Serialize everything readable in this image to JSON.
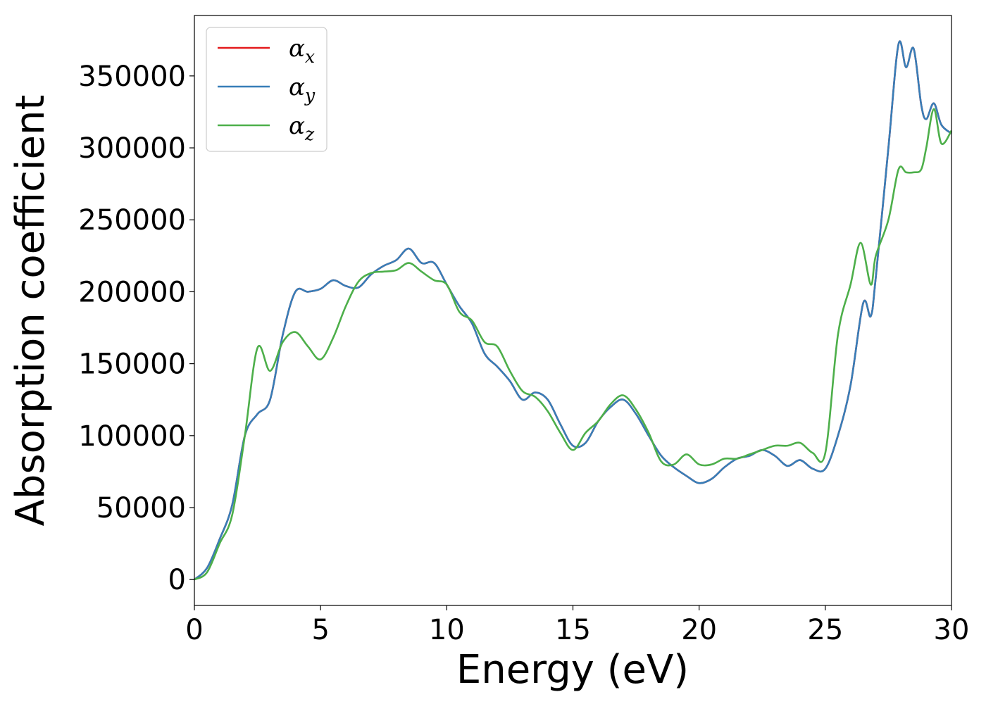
{
  "chart_data": {
    "type": "line",
    "title": "",
    "xlabel": "Energy (eV)",
    "ylabel": "Absorption coefficient",
    "xlim": [
      0,
      30
    ],
    "ylim": [
      -18000,
      392000
    ],
    "xticks": [
      0,
      5,
      10,
      15,
      20,
      25,
      30
    ],
    "yticks": [
      0,
      50000,
      100000,
      150000,
      200000,
      250000,
      300000,
      350000
    ],
    "grid": false,
    "legend_position": "top-left",
    "series": [
      {
        "name": "αx",
        "base": "α",
        "sub": "x",
        "color": "#e41a1c",
        "x": [
          0,
          0.5,
          1.0,
          1.5,
          2.0,
          2.5,
          3.0,
          3.5,
          4.0,
          4.5,
          5.0,
          5.5,
          6.0,
          6.5,
          7.0,
          7.5,
          8.0,
          8.5,
          9.0,
          9.5,
          10.0,
          10.5,
          11.0,
          11.5,
          12.0,
          12.5,
          13.0,
          13.5,
          14.0,
          14.5,
          15.0,
          15.5,
          16.0,
          16.5,
          17.0,
          17.5,
          18.0,
          18.5,
          19.0,
          19.5,
          20.0,
          20.5,
          21.0,
          21.5,
          22.0,
          22.5,
          23.0,
          23.5,
          24.0,
          24.5,
          25.0,
          25.5,
          26.0,
          26.5,
          26.8,
          27.0,
          27.5,
          27.9,
          28.2,
          28.5,
          28.8,
          29.0,
          29.3,
          29.6,
          30.0
        ],
        "y": [
          0,
          8000,
          28000,
          52000,
          100000,
          115000,
          125000,
          170000,
          200000,
          200000,
          202000,
          208000,
          204000,
          203000,
          212000,
          218000,
          222000,
          230000,
          220000,
          220000,
          205000,
          190000,
          178000,
          157000,
          148000,
          138000,
          125000,
          130000,
          125000,
          108000,
          93000,
          95000,
          110000,
          120000,
          125000,
          115000,
          100000,
          86000,
          78000,
          72000,
          67000,
          70000,
          78000,
          84000,
          86000,
          90000,
          86000,
          79000,
          83000,
          77000,
          77000,
          100000,
          135000,
          192000,
          183000,
          210000,
          300000,
          372000,
          356000,
          369000,
          330000,
          320000,
          331000,
          316000,
          310000
        ]
      },
      {
        "name": "αy",
        "base": "α",
        "sub": "y",
        "color": "#377eb8",
        "x": [
          0,
          0.5,
          1.0,
          1.5,
          2.0,
          2.5,
          3.0,
          3.5,
          4.0,
          4.5,
          5.0,
          5.5,
          6.0,
          6.5,
          7.0,
          7.5,
          8.0,
          8.5,
          9.0,
          9.5,
          10.0,
          10.5,
          11.0,
          11.5,
          12.0,
          12.5,
          13.0,
          13.5,
          14.0,
          14.5,
          15.0,
          15.5,
          16.0,
          16.5,
          17.0,
          17.5,
          18.0,
          18.5,
          19.0,
          19.5,
          20.0,
          20.5,
          21.0,
          21.5,
          22.0,
          22.5,
          23.0,
          23.5,
          24.0,
          24.5,
          25.0,
          25.5,
          26.0,
          26.5,
          26.8,
          27.0,
          27.5,
          27.9,
          28.2,
          28.5,
          28.8,
          29.0,
          29.3,
          29.6,
          30.0
        ],
        "y": [
          0,
          8000,
          28000,
          52000,
          100000,
          115000,
          125000,
          170000,
          200000,
          200000,
          202000,
          208000,
          204000,
          203000,
          212000,
          218000,
          222000,
          230000,
          220000,
          220000,
          205000,
          190000,
          178000,
          157000,
          148000,
          138000,
          125000,
          130000,
          125000,
          108000,
          93000,
          95000,
          110000,
          120000,
          125000,
          115000,
          100000,
          86000,
          78000,
          72000,
          67000,
          70000,
          78000,
          84000,
          86000,
          90000,
          86000,
          79000,
          83000,
          77000,
          77000,
          100000,
          135000,
          192000,
          183000,
          210000,
          300000,
          372000,
          356000,
          369000,
          330000,
          320000,
          331000,
          316000,
          310000
        ]
      },
      {
        "name": "αz",
        "base": "α",
        "sub": "z",
        "color": "#4daf4a",
        "x": [
          0,
          0.5,
          1.0,
          1.5,
          2.0,
          2.5,
          3.0,
          3.5,
          4.0,
          4.5,
          5.0,
          5.5,
          6.0,
          6.5,
          7.0,
          7.5,
          8.0,
          8.5,
          9.0,
          9.5,
          10.0,
          10.5,
          11.0,
          11.5,
          12.0,
          12.5,
          13.0,
          13.5,
          14.0,
          14.5,
          15.0,
          15.5,
          16.0,
          16.5,
          17.0,
          17.5,
          18.0,
          18.5,
          19.0,
          19.5,
          20.0,
          20.5,
          21.0,
          21.5,
          22.0,
          22.5,
          23.0,
          23.5,
          24.0,
          24.5,
          25.0,
          25.5,
          26.0,
          26.4,
          26.8,
          27.0,
          27.5,
          27.9,
          28.2,
          28.5,
          28.8,
          29.0,
          29.3,
          29.6,
          30.0
        ],
        "y": [
          0,
          5000,
          25000,
          45000,
          100000,
          161000,
          145000,
          165000,
          172000,
          162000,
          153000,
          168000,
          190000,
          207000,
          213000,
          214000,
          215000,
          220000,
          214000,
          208000,
          205000,
          186000,
          180000,
          165000,
          162000,
          145000,
          131000,
          127000,
          117000,
          102000,
          90000,
          102000,
          110000,
          122000,
          128000,
          118000,
          102000,
          82000,
          80000,
          87000,
          80000,
          80000,
          84000,
          84000,
          87000,
          90000,
          93000,
          93000,
          95000,
          88000,
          88000,
          170000,
          205000,
          234000,
          205000,
          225000,
          250000,
          285000,
          283000,
          283000,
          285000,
          300000,
          327000,
          303000,
          312000
        ]
      }
    ]
  }
}
